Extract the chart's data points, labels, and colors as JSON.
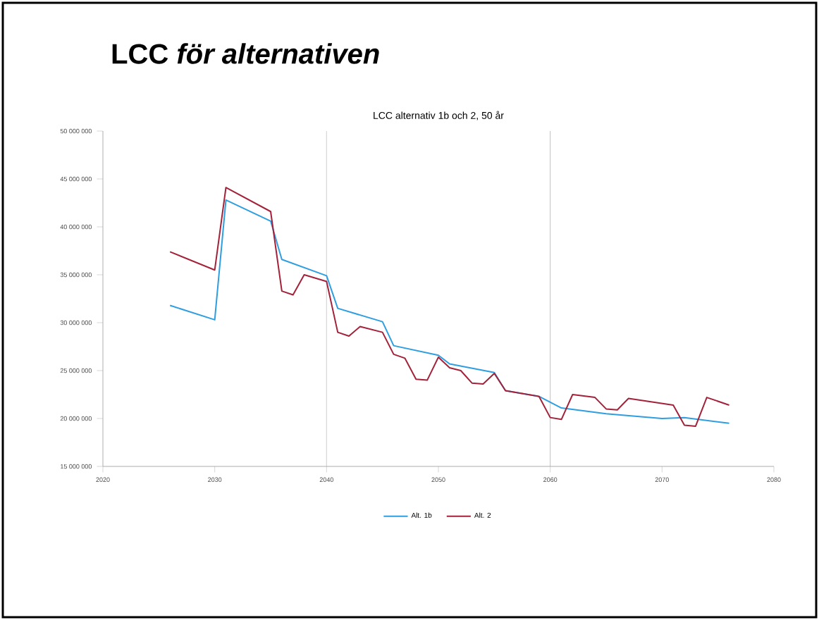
{
  "chart_data": {
    "type": "line",
    "title": "LCC *för alternativen*",
    "subtitle": "LCC alternativ 1b och 2, 50 år",
    "series": [
      {
        "name": "Alt. 1b",
        "color": "#2e9ee0",
        "x": [
          2026,
          2030,
          2031,
          2035,
          2036,
          2040,
          2041,
          2045,
          2046,
          2050,
          2051,
          2055,
          2056,
          2059,
          2061,
          2065,
          2070,
          2072,
          2076
        ],
        "values": [
          31800000,
          30300000,
          42800000,
          40600000,
          36600000,
          34900000,
          31500000,
          30100000,
          27600000,
          26600000,
          25700000,
          24800000,
          22900000,
          22300000,
          21100000,
          20500000,
          20000000,
          20100000,
          19500000
        ]
      },
      {
        "name": "Alt. 2",
        "color": "#a3223a",
        "x": [
          2026,
          2030,
          2031,
          2035,
          2036,
          2037,
          2038,
          2040,
          2041,
          2042,
          2043,
          2045,
          2046,
          2047,
          2048,
          2049,
          2050,
          2051,
          2052,
          2053,
          2054,
          2055,
          2056,
          2059,
          2060,
          2061,
          2062,
          2064,
          2065,
          2066,
          2067,
          2071,
          2072,
          2073,
          2074,
          2076
        ],
        "values": [
          37400000,
          35500000,
          44100000,
          41600000,
          33300000,
          32900000,
          35000000,
          34300000,
          29000000,
          28600000,
          29600000,
          29000000,
          26700000,
          26300000,
          24100000,
          24000000,
          26400000,
          25300000,
          25000000,
          23700000,
          23600000,
          24700000,
          22900000,
          22300000,
          20100000,
          19900000,
          22500000,
          22200000,
          21000000,
          20900000,
          22100000,
          21400000,
          19300000,
          19200000,
          22200000,
          21400000
        ]
      }
    ],
    "xlim": [
      2020,
      2080
    ],
    "xticks": [
      2020,
      2030,
      2040,
      2050,
      2060,
      2070,
      2080
    ],
    "ylim": [
      15000000,
      50000000
    ],
    "yticks": [
      {
        "value": 15000000,
        "label": "15 000 000"
      },
      {
        "value": 20000000,
        "label": "20 000 000"
      },
      {
        "value": 25000000,
        "label": "25 000 000"
      },
      {
        "value": 30000000,
        "label": "30 000 000"
      },
      {
        "value": 35000000,
        "label": "35 000 000"
      },
      {
        "value": 40000000,
        "label": "40 000 000"
      },
      {
        "value": 45000000,
        "label": "45 000 000"
      },
      {
        "value": 50000000,
        "label": "50 000 000"
      }
    ],
    "ref_lines": [
      {
        "axis": "x",
        "value": 2040,
        "color": "#b0b0b0"
      },
      {
        "axis": "x",
        "value": 2060,
        "color": "#b0b0b0"
      }
    ],
    "legend": "bottom",
    "marker": "none",
    "line_style": "solid",
    "grid": false
  }
}
